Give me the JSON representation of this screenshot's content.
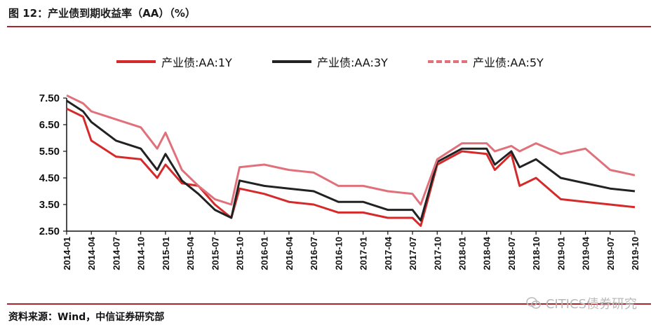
{
  "header": {
    "title": "图 12：产业债到期收益率（AA）（%）"
  },
  "footer": {
    "source": "资料来源：Wind，中信证券研究部",
    "watermark": "CITICS债券研究"
  },
  "chart_data": {
    "type": "line",
    "title": "",
    "xlabel": "",
    "ylabel": "",
    "ylim": [
      2.5,
      7.5
    ],
    "yticks": [
      "7.50",
      "6.50",
      "5.50",
      "4.50",
      "3.50",
      "2.50"
    ],
    "xticks": [
      "2014-01",
      "2014-04",
      "2014-07",
      "2014-10",
      "2015-01",
      "2015-04",
      "2015-07",
      "2015-10",
      "2016-01",
      "2016-04",
      "2016-07",
      "2016-10",
      "2017-01",
      "2017-04",
      "2017-07",
      "2017-10",
      "2018-01",
      "2018-04",
      "2018-07",
      "2018-10",
      "2019-01",
      "2019-04",
      "2019-07",
      "2019-10"
    ],
    "legend_position": "top",
    "grid": false,
    "x": [
      "2014-01",
      "2014-03",
      "2014-04",
      "2014-07",
      "2014-10",
      "2014-12",
      "2015-01",
      "2015-03",
      "2015-05",
      "2015-07",
      "2015-09",
      "2015-10",
      "2016-01",
      "2016-04",
      "2016-07",
      "2016-10",
      "2017-01",
      "2017-04",
      "2017-07",
      "2017-08",
      "2017-10",
      "2018-01",
      "2018-04",
      "2018-05",
      "2018-07",
      "2018-08",
      "2018-10",
      "2019-01",
      "2019-04",
      "2019-07",
      "2019-10"
    ],
    "series": [
      {
        "name": "产业债:AA:1Y",
        "color": "#d62a2a",
        "dash": "solid",
        "values": [
          7.1,
          6.8,
          5.9,
          5.3,
          5.2,
          4.5,
          5.0,
          4.3,
          4.2,
          3.5,
          3.0,
          4.1,
          3.9,
          3.6,
          3.5,
          3.2,
          3.2,
          3.0,
          3.0,
          2.7,
          5.0,
          5.5,
          5.4,
          4.8,
          5.4,
          4.2,
          4.5,
          3.7,
          3.6,
          3.5,
          3.4
        ]
      },
      {
        "name": "产业债:AA:3Y",
        "color": "#222222",
        "dash": "solid",
        "values": [
          7.4,
          7.0,
          6.6,
          5.9,
          5.6,
          4.8,
          5.4,
          4.4,
          3.9,
          3.3,
          3.0,
          4.4,
          4.2,
          4.1,
          4.0,
          3.6,
          3.6,
          3.3,
          3.3,
          2.9,
          5.1,
          5.6,
          5.6,
          5.0,
          5.5,
          4.9,
          5.2,
          4.5,
          4.3,
          4.1,
          4.0
        ]
      },
      {
        "name": "产业债:AA:5Y",
        "color": "#e0707a",
        "dash": "dashed",
        "values": [
          7.6,
          7.3,
          7.0,
          6.7,
          6.4,
          5.6,
          6.2,
          4.8,
          4.2,
          3.7,
          3.5,
          4.9,
          5.0,
          4.8,
          4.7,
          4.2,
          4.2,
          4.0,
          3.9,
          3.5,
          5.2,
          5.8,
          5.8,
          5.5,
          5.7,
          5.5,
          5.8,
          5.4,
          5.6,
          4.8,
          4.6
        ]
      }
    ]
  }
}
